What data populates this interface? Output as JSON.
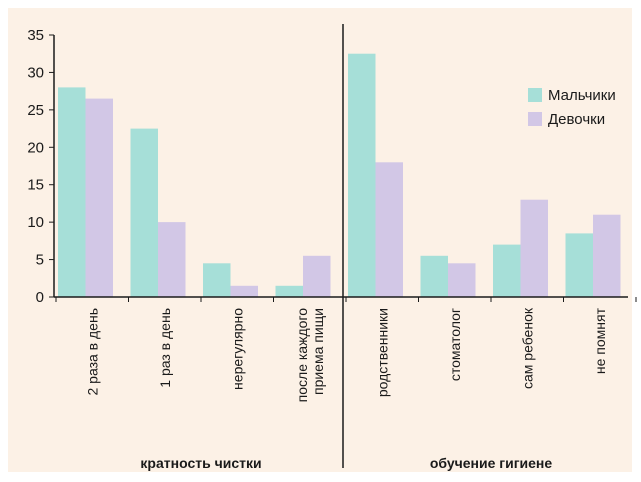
{
  "chart_data": {
    "type": "bar",
    "ylim": [
      0,
      35
    ],
    "yticks": [
      0,
      5,
      10,
      15,
      20,
      25,
      30,
      35
    ],
    "categories": [
      [
        "2 раза в день"
      ],
      [
        "1 раз в день"
      ],
      [
        "нерегулярно"
      ],
      [
        "после каждого",
        "приема пищи"
      ],
      [
        "родственники"
      ],
      [
        "стоматолог"
      ],
      [
        "сам ребенок"
      ],
      [
        "не помнят"
      ]
    ],
    "groups": [
      {
        "label": "кратность чистки",
        "categories": [
          0,
          1,
          2,
          3
        ]
      },
      {
        "label": "обучение гигиене",
        "categories": [
          4,
          5,
          6,
          7
        ]
      }
    ],
    "series": [
      {
        "name": "Мальчики",
        "color": "#a6dfd8",
        "values": [
          28,
          22.5,
          4.5,
          1.5,
          32.5,
          5.5,
          7,
          8.5
        ]
      },
      {
        "name": "Девочки",
        "color": "#d2c7e6",
        "values": [
          26.5,
          10,
          1.5,
          5.5,
          18,
          4.5,
          13,
          11
        ]
      }
    ],
    "legend": "top-right",
    "grid": false
  },
  "colors": {
    "background": "#fcf1e6",
    "axis": "#1a1a1a"
  }
}
